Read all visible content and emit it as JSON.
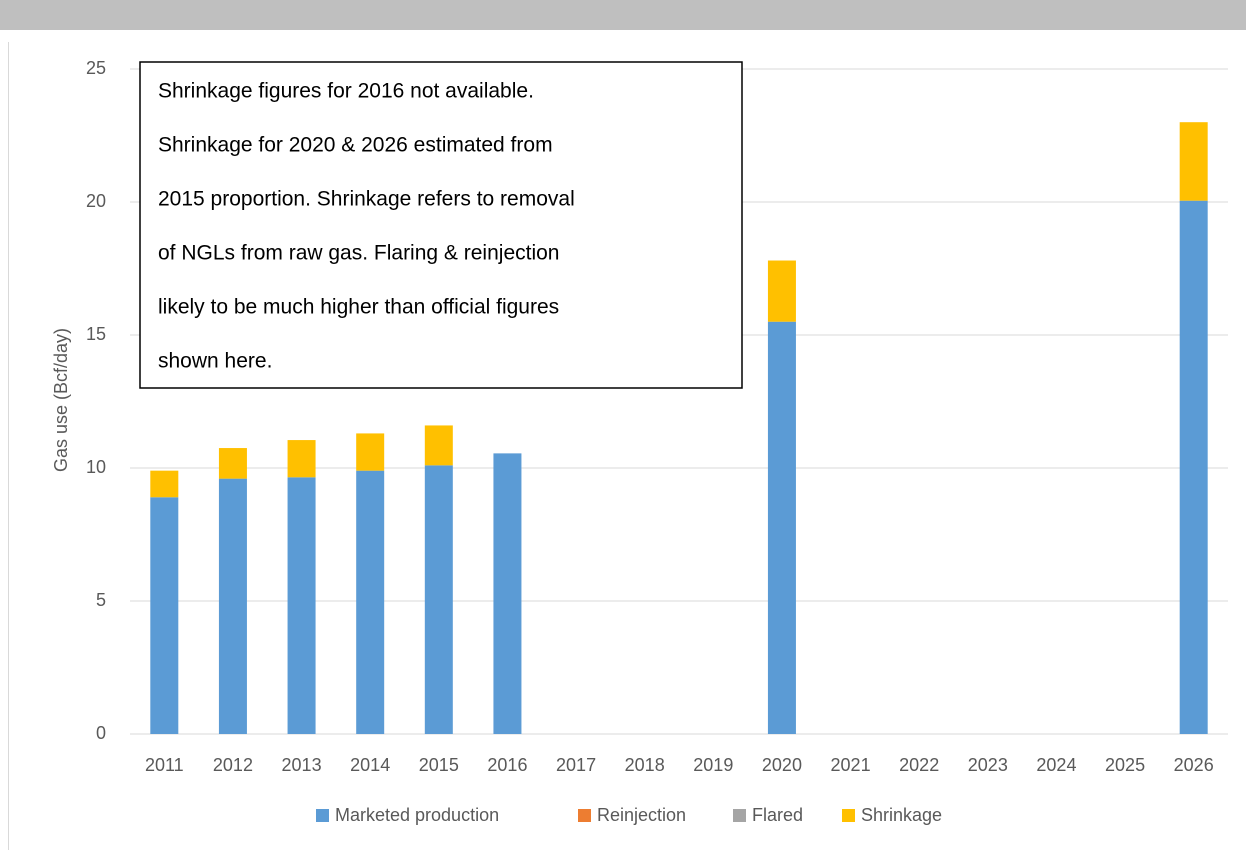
{
  "chart_data": {
    "type": "stacked_bar",
    "y_axis_label": "Gas use (Bcf/day)",
    "annotation": [
      "Shrinkage figures for 2016 not available.",
      "Shrinkage for 2020 & 2026 estimated from",
      "2015 proportion. Shrinkage refers to removal",
      "of NGLs from raw gas. Flaring & reinjection",
      "likely to be much higher than official figures",
      "shown here."
    ],
    "categories": [
      "2011",
      "2012",
      "2013",
      "2014",
      "2015",
      "2016",
      "2017",
      "2018",
      "2019",
      "2020",
      "2021",
      "2022",
      "2023",
      "2024",
      "2025",
      "2026"
    ],
    "series": [
      {
        "name": "Marketed production",
        "color": "#5b9bd5",
        "values": [
          8.9,
          9.6,
          9.65,
          9.9,
          10.1,
          10.55,
          null,
          null,
          null,
          15.5,
          null,
          null,
          null,
          null,
          null,
          20.05
        ]
      },
      {
        "name": "Reinjection",
        "color": "#ed7d31",
        "values": [
          0,
          0,
          0,
          0,
          0,
          0,
          null,
          null,
          null,
          0,
          null,
          null,
          null,
          null,
          null,
          0
        ]
      },
      {
        "name": "Flared",
        "color": "#a5a5a5",
        "values": [
          0,
          0,
          0,
          0,
          0,
          0,
          null,
          null,
          null,
          0,
          null,
          null,
          null,
          null,
          null,
          0
        ]
      },
      {
        "name": "Shrinkage",
        "color": "#ffc000",
        "values": [
          1.0,
          1.15,
          1.4,
          1.4,
          1.5,
          null,
          null,
          null,
          null,
          2.3,
          null,
          null,
          null,
          null,
          null,
          2.95
        ]
      }
    ],
    "ylim": [
      0,
      25
    ],
    "yticks": [
      0,
      5,
      10,
      15,
      20,
      25
    ],
    "grid": true,
    "legend": "bottom"
  }
}
